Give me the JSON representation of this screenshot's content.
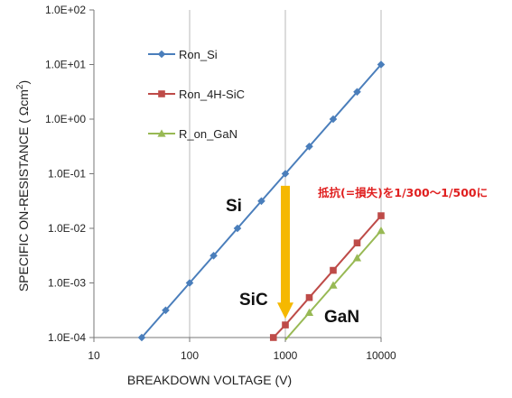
{
  "chart_data": {
    "type": "line",
    "xlabel": "BREAKDOWN VOLTAGE (V)",
    "ylabel": "SPECIFIC ON-RESISTANCE ( Ωcm",
    "ylabel_sup": "2",
    "ylabel_end": ")",
    "xscale": "log",
    "yscale": "log",
    "xlim": [
      10,
      10000
    ],
    "ylim": [
      0.0001,
      100
    ],
    "x_ticks": [
      10,
      100,
      1000,
      10000
    ],
    "x_tick_labels": [
      "10",
      "100",
      "1000",
      "10000"
    ],
    "y_ticks": [
      0.0001,
      0.001,
      0.01,
      0.1,
      1,
      10,
      100
    ],
    "y_tick_labels": [
      "1.0E-04",
      "1.0E-03",
      "1.0E-02",
      "1.0E-01",
      "1.0E+00",
      "1.0E+01",
      "1.0E+02"
    ],
    "grid": "vertical-major",
    "legend_position": "top-left",
    "series": [
      {
        "name": "Ron_Si",
        "color": "#4a7ebb",
        "marker": "diamond",
        "points": [
          [
            31.6,
            0.0001
          ],
          [
            56.2,
            0.000316
          ],
          [
            100,
            0.001
          ],
          [
            178,
            0.00316
          ],
          [
            316,
            0.01
          ],
          [
            562,
            0.0316
          ],
          [
            1000,
            0.1
          ],
          [
            1778,
            0.316
          ],
          [
            3162,
            1.0
          ],
          [
            5623,
            3.16
          ],
          [
            10000,
            10.0
          ]
        ]
      },
      {
        "name": "Ron_4H-SiC",
        "color": "#be4b48",
        "marker": "square",
        "points": [
          [
            750,
            0.0001
          ],
          [
            1000,
            0.00017
          ],
          [
            1778,
            0.00054
          ],
          [
            3162,
            0.0017
          ],
          [
            5623,
            0.0054
          ],
          [
            10000,
            0.017
          ]
        ]
      },
      {
        "name": "R_on_GaN",
        "color": "#98b954",
        "marker": "triangle",
        "points": [
          [
            1000,
            9.05e-05
          ],
          [
            1778,
            0.000286
          ],
          [
            3162,
            0.000905
          ],
          [
            5623,
            0.00286
          ],
          [
            10000,
            0.00905
          ]
        ]
      }
    ],
    "annotations": {
      "si_label": "Si",
      "sic_label": "SiC",
      "gan_label": "GaN",
      "note": "抵抗(=損失)を1/300〜1/500に",
      "arrow_color": "#f5b800",
      "arrow_from": [
        1000,
        0.06
      ],
      "arrow_to": [
        1000,
        0.00022
      ]
    }
  }
}
